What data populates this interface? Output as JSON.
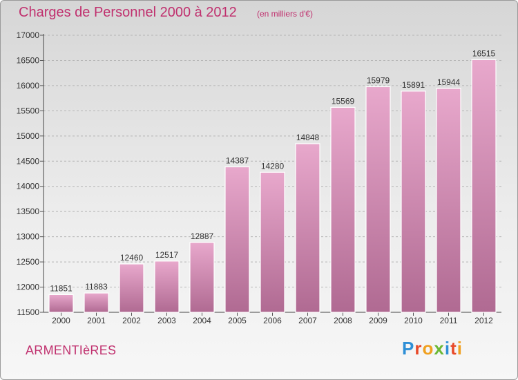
{
  "header": {
    "title": "Charges de Personnel 2000 à 2012",
    "subtitle": "(en milliers d'€)"
  },
  "footer": {
    "city": "ARMENTIèRES",
    "logo_letters": [
      {
        "char": "P",
        "color": "#2e8fd6"
      },
      {
        "char": "r",
        "color": "#e84a2a"
      },
      {
        "char": "o",
        "color": "#f0a020"
      },
      {
        "char": "x",
        "color": "#6bb834"
      },
      {
        "char": "i",
        "color": "#2e8fd6"
      },
      {
        "char": "t",
        "color": "#e84a2a"
      },
      {
        "char": "i",
        "color": "#f0a020"
      }
    ]
  },
  "colors": {
    "bar_top": "#e8a8cc",
    "bar_bottom": "#b06a92",
    "text_accent": "#c0306e"
  },
  "chart_data": {
    "type": "bar",
    "title": "Charges de Personnel 2000 à 2012",
    "subtitle": "(en milliers d'€)",
    "xlabel": "",
    "ylabel": "",
    "categories": [
      "2000",
      "2001",
      "2002",
      "2003",
      "2004",
      "2005",
      "2006",
      "2007",
      "2008",
      "2009",
      "2010",
      "2011",
      "2012"
    ],
    "values": [
      11851,
      11883,
      12460,
      12517,
      12887,
      14387,
      14280,
      14848,
      15569,
      15979,
      15891,
      15944,
      16515
    ],
    "ylim": [
      11500,
      17000
    ],
    "yticks": [
      11500,
      12000,
      12500,
      13000,
      13500,
      14000,
      14500,
      15000,
      15500,
      16000,
      16500,
      17000
    ],
    "grid": true,
    "legend": "none"
  }
}
